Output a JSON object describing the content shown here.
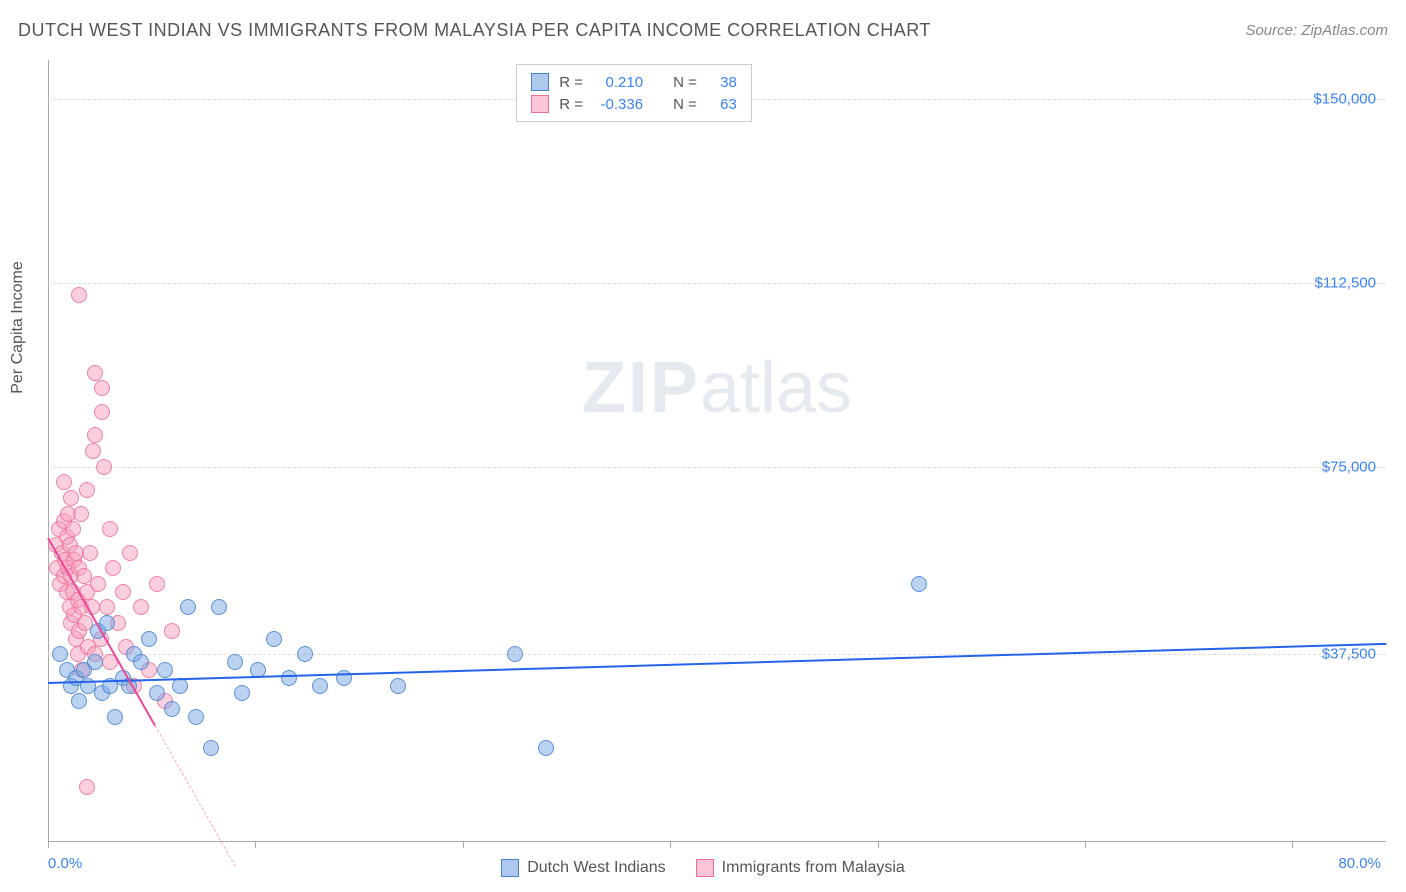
{
  "header": {
    "title": "DUTCH WEST INDIAN VS IMMIGRANTS FROM MALAYSIA PER CAPITA INCOME CORRELATION CHART",
    "source": "Source: ZipAtlas.com"
  },
  "watermark": {
    "zip": "ZIP",
    "atlas": "atlas"
  },
  "chart": {
    "type": "scatter",
    "y_axis_label": "Per Capita Income",
    "background_color": "#ffffff",
    "grid_color": "#dddddd",
    "axis_color": "#aaaaaa",
    "y_ticks": [
      {
        "value": 150000,
        "label": "$150,000",
        "pct_from_top": 5
      },
      {
        "value": 112500,
        "label": "$112,500",
        "pct_from_top": 28.5
      },
      {
        "value": 75000,
        "label": "$75,000",
        "pct_from_top": 52
      },
      {
        "value": 37500,
        "label": "$37,500",
        "pct_from_top": 76
      }
    ],
    "x_range": {
      "min": 0,
      "max": 80,
      "min_label": "0.0%",
      "max_label": "80.0%"
    },
    "x_tick_positions_pct": [
      0,
      15.5,
      31,
      46.5,
      62,
      77.5,
      93
    ],
    "series": {
      "blue": {
        "name": "Dutch West Indians",
        "fill": "rgba(120,165,225,0.5)",
        "stroke": "rgba(70,130,210,0.8)",
        "r_value": "0.210",
        "n_value": "38",
        "trend": {
          "x1_pct": 0,
          "y1_pct": 79.5,
          "x2_pct": 100,
          "y2_pct": 74.5,
          "color": "#2563eb",
          "width": 2
        },
        "points": [
          {
            "x": 0.8,
            "y": 76
          },
          {
            "x": 1.2,
            "y": 78
          },
          {
            "x": 1.5,
            "y": 80
          },
          {
            "x": 1.8,
            "y": 79
          },
          {
            "x": 2.0,
            "y": 82
          },
          {
            "x": 2.3,
            "y": 78
          },
          {
            "x": 2.6,
            "y": 80
          },
          {
            "x": 3.0,
            "y": 77
          },
          {
            "x": 3.2,
            "y": 73
          },
          {
            "x": 3.5,
            "y": 81
          },
          {
            "x": 3.8,
            "y": 72
          },
          {
            "x": 4.0,
            "y": 80
          },
          {
            "x": 4.3,
            "y": 84
          },
          {
            "x": 4.8,
            "y": 79
          },
          {
            "x": 5.2,
            "y": 80
          },
          {
            "x": 5.5,
            "y": 76
          },
          {
            "x": 6.0,
            "y": 77
          },
          {
            "x": 6.5,
            "y": 74
          },
          {
            "x": 7.0,
            "y": 81
          },
          {
            "x": 7.5,
            "y": 78
          },
          {
            "x": 8.0,
            "y": 83
          },
          {
            "x": 8.5,
            "y": 80
          },
          {
            "x": 9.0,
            "y": 70
          },
          {
            "x": 9.5,
            "y": 84
          },
          {
            "x": 10.5,
            "y": 88
          },
          {
            "x": 11.0,
            "y": 70
          },
          {
            "x": 12.0,
            "y": 77
          },
          {
            "x": 12.5,
            "y": 81
          },
          {
            "x": 13.5,
            "y": 78
          },
          {
            "x": 14.5,
            "y": 74
          },
          {
            "x": 15.5,
            "y": 79
          },
          {
            "x": 16.5,
            "y": 76
          },
          {
            "x": 17.5,
            "y": 80
          },
          {
            "x": 19.0,
            "y": 79
          },
          {
            "x": 22.5,
            "y": 80
          },
          {
            "x": 30.0,
            "y": 76
          },
          {
            "x": 32.0,
            "y": 88
          },
          {
            "x": 56.0,
            "y": 67
          }
        ]
      },
      "pink": {
        "name": "Immigrants from Malaysia",
        "fill": "rgba(250,160,190,0.5)",
        "stroke": "rgba(235,110,150,0.8)",
        "r_value": "-0.336",
        "n_value": "63",
        "trend": {
          "x1_pct": 0,
          "y1_pct": 61,
          "x2_pct": 8,
          "y2_pct": 85,
          "color": "#ec4899",
          "width": 2,
          "ext_x2_pct": 14,
          "ext_y2_pct": 103
        },
        "points": [
          {
            "x": 0.5,
            "y": 62
          },
          {
            "x": 0.6,
            "y": 65
          },
          {
            "x": 0.7,
            "y": 60
          },
          {
            "x": 0.8,
            "y": 67
          },
          {
            "x": 0.9,
            "y": 63
          },
          {
            "x": 1.0,
            "y": 59
          },
          {
            "x": 1.0,
            "y": 66
          },
          {
            "x": 1.1,
            "y": 64
          },
          {
            "x": 1.2,
            "y": 61
          },
          {
            "x": 1.2,
            "y": 68
          },
          {
            "x": 1.3,
            "y": 58
          },
          {
            "x": 1.3,
            "y": 65
          },
          {
            "x": 1.4,
            "y": 70
          },
          {
            "x": 1.4,
            "y": 62
          },
          {
            "x": 1.5,
            "y": 66
          },
          {
            "x": 1.5,
            "y": 72
          },
          {
            "x": 1.6,
            "y": 60
          },
          {
            "x": 1.6,
            "y": 68
          },
          {
            "x": 1.7,
            "y": 64
          },
          {
            "x": 1.7,
            "y": 71
          },
          {
            "x": 1.8,
            "y": 74
          },
          {
            "x": 1.8,
            "y": 63
          },
          {
            "x": 1.9,
            "y": 69
          },
          {
            "x": 1.9,
            "y": 76
          },
          {
            "x": 2.0,
            "y": 65
          },
          {
            "x": 2.0,
            "y": 73
          },
          {
            "x": 2.1,
            "y": 70
          },
          {
            "x": 2.1,
            "y": 58
          },
          {
            "x": 2.2,
            "y": 78
          },
          {
            "x": 2.3,
            "y": 66
          },
          {
            "x": 2.4,
            "y": 72
          },
          {
            "x": 2.5,
            "y": 55
          },
          {
            "x": 2.5,
            "y": 68
          },
          {
            "x": 2.6,
            "y": 75
          },
          {
            "x": 2.7,
            "y": 63
          },
          {
            "x": 2.8,
            "y": 70
          },
          {
            "x": 2.9,
            "y": 50
          },
          {
            "x": 3.0,
            "y": 76
          },
          {
            "x": 3.0,
            "y": 48
          },
          {
            "x": 3.2,
            "y": 67
          },
          {
            "x": 3.4,
            "y": 74
          },
          {
            "x": 3.5,
            "y": 45
          },
          {
            "x": 3.6,
            "y": 52
          },
          {
            "x": 3.8,
            "y": 70
          },
          {
            "x": 4.0,
            "y": 77
          },
          {
            "x": 4.2,
            "y": 65
          },
          {
            "x": 4.5,
            "y": 72
          },
          {
            "x": 4.8,
            "y": 68
          },
          {
            "x": 5.0,
            "y": 75
          },
          {
            "x": 5.3,
            "y": 63
          },
          {
            "x": 5.5,
            "y": 80
          },
          {
            "x": 6.0,
            "y": 70
          },
          {
            "x": 6.5,
            "y": 78
          },
          {
            "x": 7.0,
            "y": 67
          },
          {
            "x": 7.5,
            "y": 82
          },
          {
            "x": 8.0,
            "y": 73
          },
          {
            "x": 2.0,
            "y": 30
          },
          {
            "x": 2.5,
            "y": 93
          },
          {
            "x": 3.0,
            "y": 40
          },
          {
            "x": 3.5,
            "y": 42
          },
          {
            "x": 1.0,
            "y": 54
          },
          {
            "x": 1.5,
            "y": 56
          },
          {
            "x": 4.0,
            "y": 60
          }
        ]
      }
    }
  },
  "stats_box": {
    "r_label": "R =",
    "n_label": "N ="
  },
  "bottom_legend": {
    "blue": "Dutch West Indians",
    "pink": "Immigrants from Malaysia"
  }
}
